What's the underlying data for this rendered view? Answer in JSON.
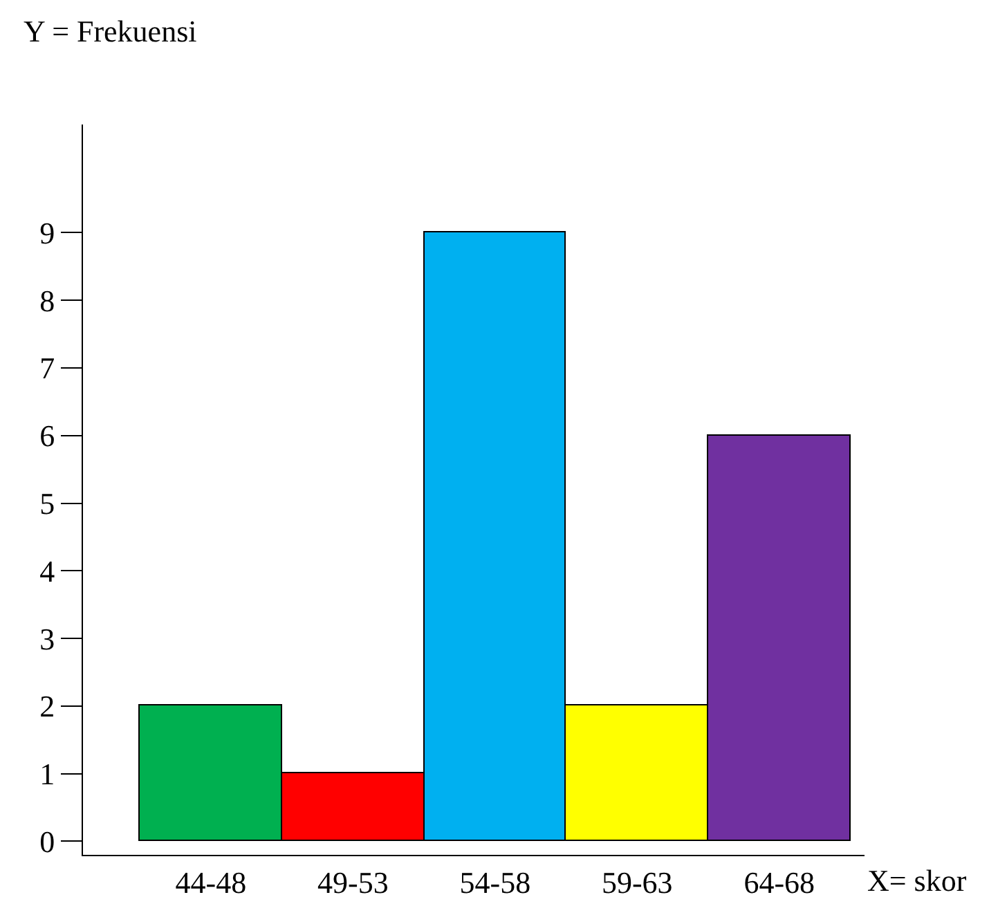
{
  "chart_data": {
    "type": "bar",
    "ylabel": "Y = Frekuensi",
    "xlabel": "X= skor",
    "categories": [
      "44-48",
      "49-53",
      "54-58",
      "59-63",
      "64-68"
    ],
    "values": [
      2,
      1,
      9,
      2,
      6
    ],
    "colors": [
      "#00b050",
      "#ff0000",
      "#00b0f0",
      "#ffff00",
      "#7030a0"
    ],
    "ylim": [
      -0.2,
      10.6
    ],
    "yticks": [
      0,
      1,
      2,
      3,
      4,
      5,
      6,
      7,
      8,
      9
    ],
    "legend": false
  }
}
